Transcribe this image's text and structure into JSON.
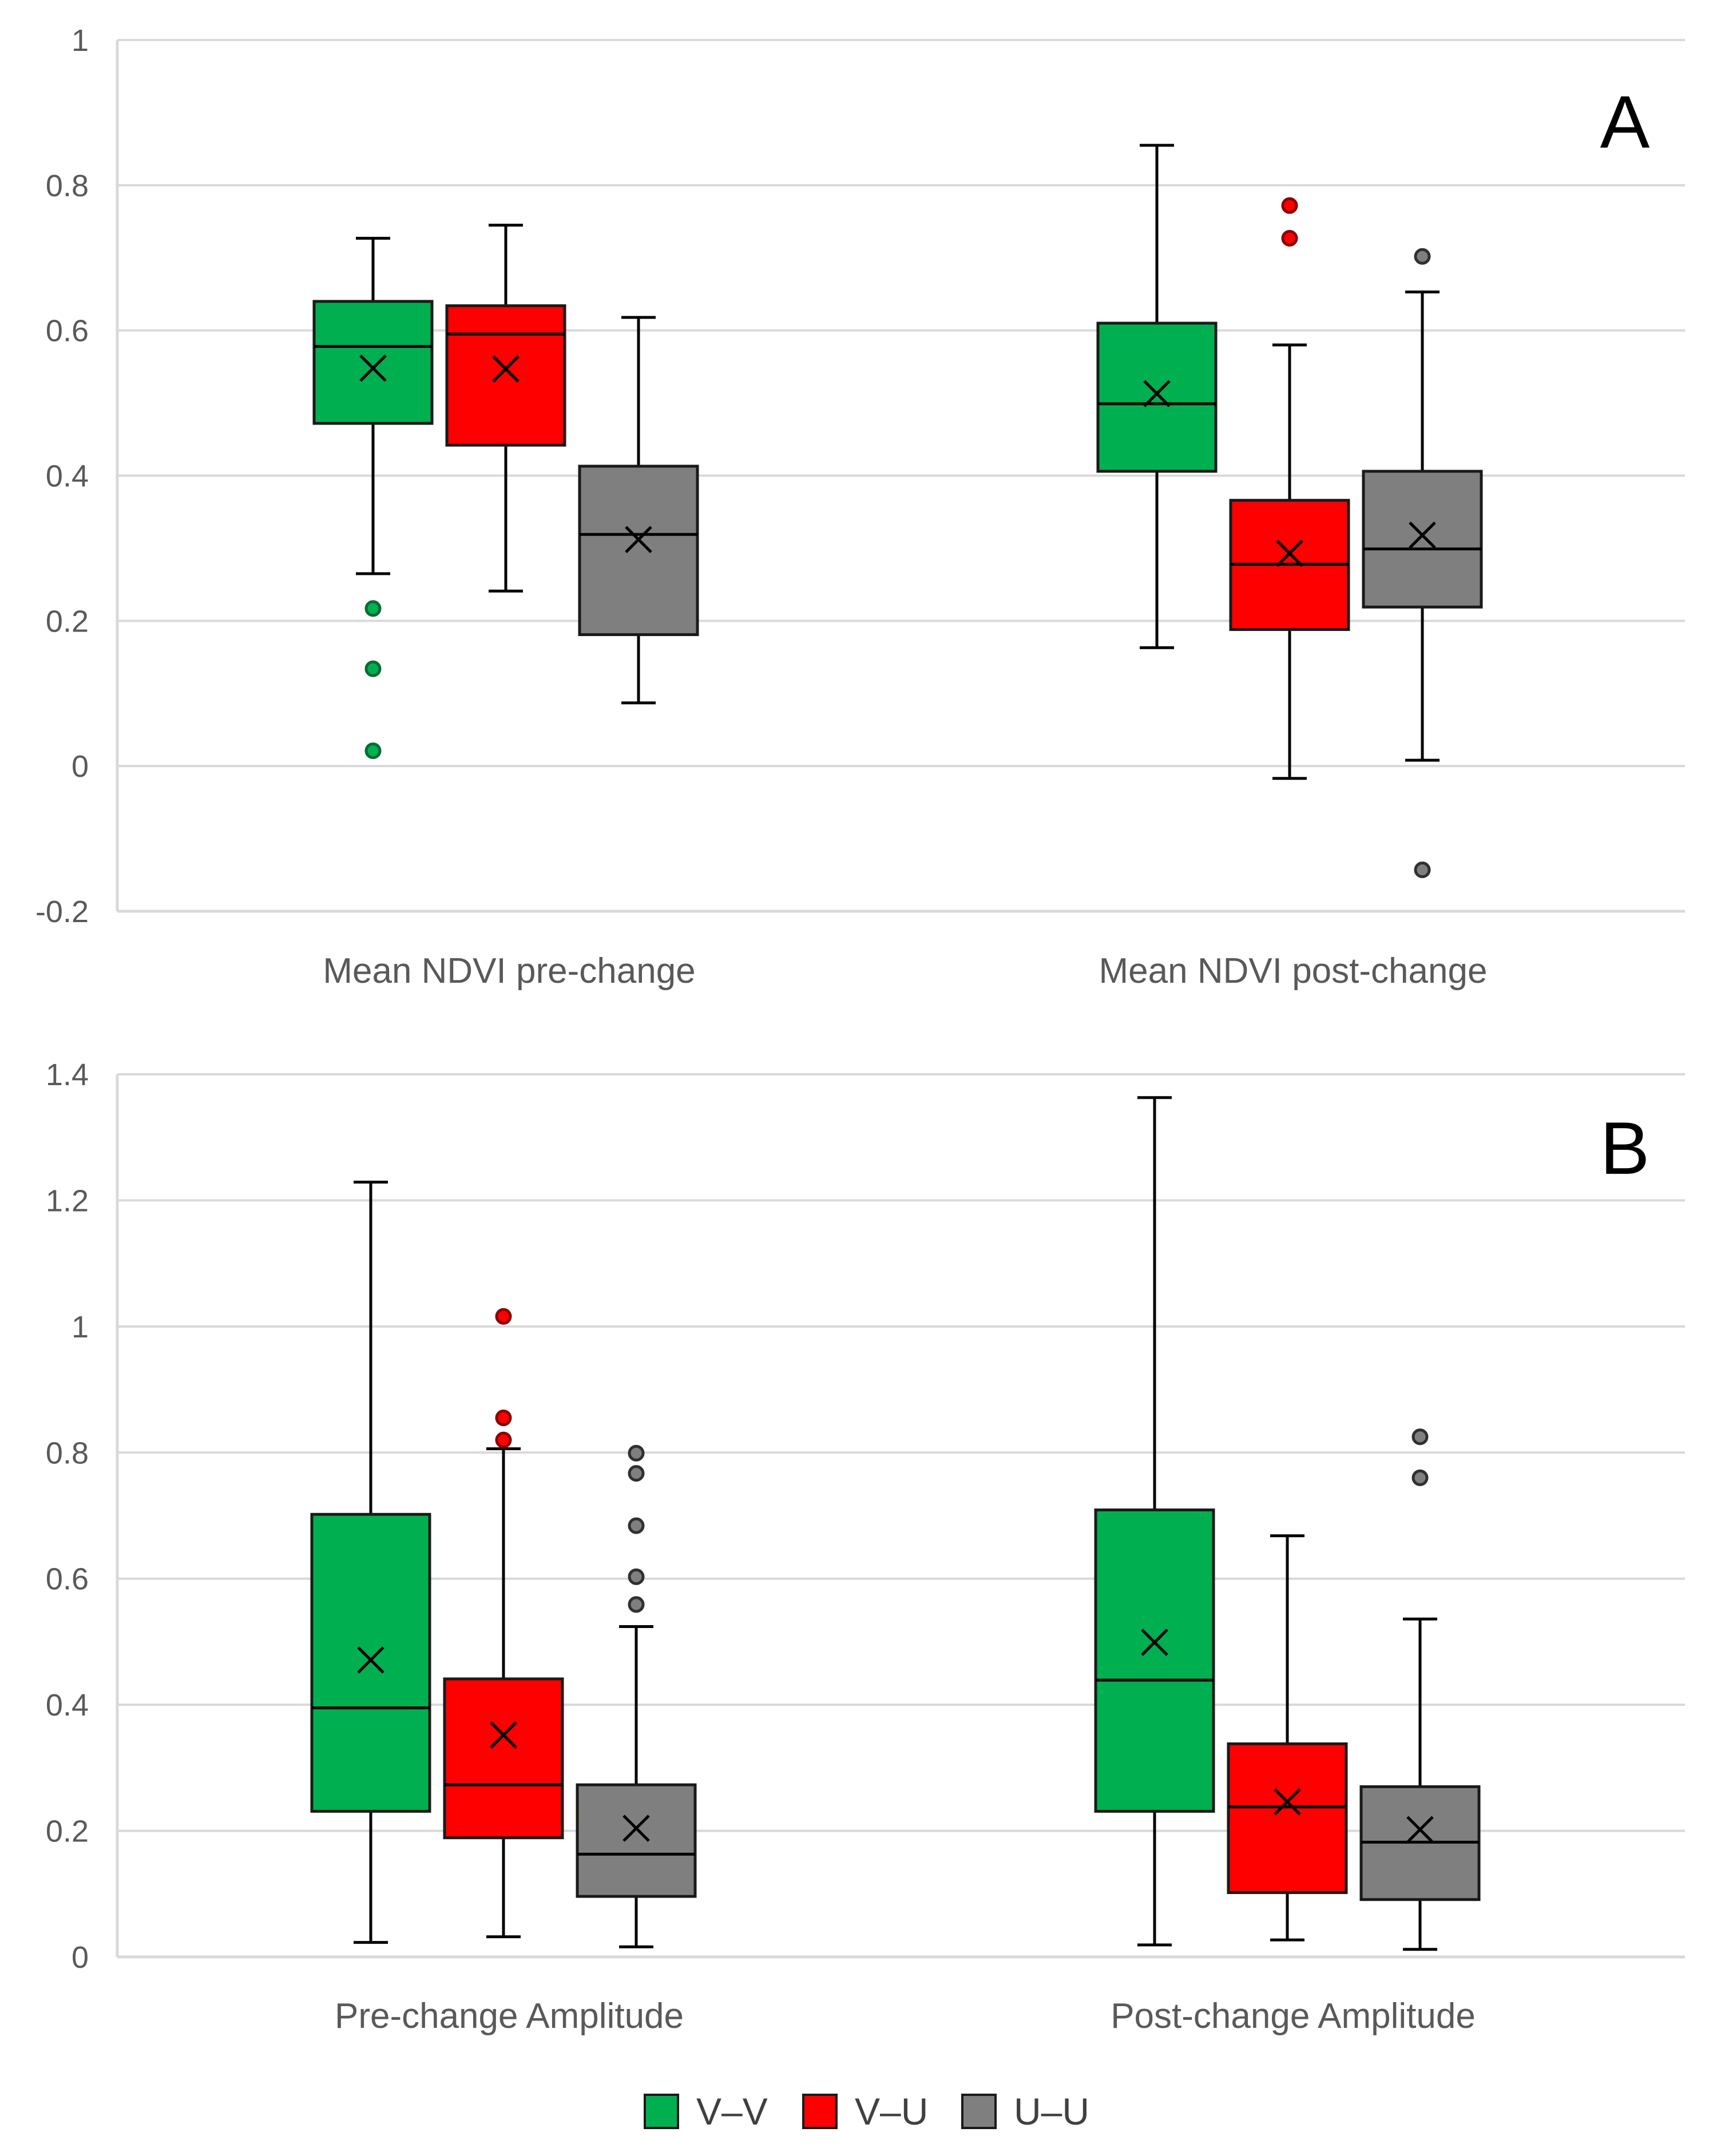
{
  "chart_data": [
    {
      "type": "box",
      "panel": "A",
      "ylim": [
        -0.2,
        1
      ],
      "yticks": [
        -0.2,
        0,
        0.2,
        0.4,
        0.6,
        0.8,
        1
      ],
      "ytick_labels": [
        "-0.2",
        "0",
        "0.2",
        "0.4",
        "0.6",
        "0.8",
        "1"
      ],
      "grid": true,
      "categories": [
        "Mean NDVI pre-change",
        "Mean NDVI post-change"
      ],
      "series": [
        {
          "name": "V–V",
          "color": "#00b050",
          "boxes": [
            {
              "min": 0.265,
              "q1": 0.472,
              "median": 0.578,
              "q3": 0.64,
              "max": 0.727,
              "mean": 0.548,
              "outliers": [
                0.217,
                0.134,
                0.021
              ]
            },
            {
              "min": 0.163,
              "q1": 0.406,
              "median": 0.499,
              "q3": 0.61,
              "max": 0.855,
              "mean": 0.513,
              "outliers": []
            }
          ]
        },
        {
          "name": "V–U",
          "color": "#ff0000",
          "boxes": [
            {
              "min": 0.241,
              "q1": 0.442,
              "median": 0.595,
              "q3": 0.634,
              "max": 0.745,
              "mean": 0.547,
              "outliers": []
            },
            {
              "min": -0.017,
              "q1": 0.188,
              "median": 0.278,
              "q3": 0.366,
              "max": 0.58,
              "mean": 0.293,
              "outliers": [
                0.772,
                0.727
              ]
            }
          ]
        },
        {
          "name": "U–U",
          "color": "#7f7f7f",
          "boxes": [
            {
              "min": 0.087,
              "q1": 0.181,
              "median": 0.319,
              "q3": 0.413,
              "max": 0.618,
              "mean": 0.312,
              "outliers": []
            },
            {
              "min": 0.008,
              "q1": 0.219,
              "median": 0.299,
              "q3": 0.406,
              "max": 0.653,
              "mean": 0.318,
              "outliers": [
                0.702,
                -0.143
              ]
            }
          ]
        }
      ]
    },
    {
      "type": "box",
      "panel": "B",
      "ylim": [
        0,
        1.4
      ],
      "yticks": [
        0,
        0.2,
        0.4,
        0.6,
        0.8,
        1,
        1.2,
        1.4
      ],
      "ytick_labels": [
        "0",
        "0.2",
        "0.4",
        "0.6",
        "0.8",
        "1",
        "1.2",
        "1.4"
      ],
      "grid": true,
      "categories": [
        "Pre-change Amplitude",
        "Post-change Amplitude"
      ],
      "series": [
        {
          "name": "V–V",
          "color": "#00b050",
          "boxes": [
            {
              "min": 0.023,
              "q1": 0.231,
              "median": 0.395,
              "q3": 0.702,
              "max": 1.229,
              "mean": 0.471,
              "outliers": []
            },
            {
              "min": 0.019,
              "q1": 0.231,
              "median": 0.439,
              "q3": 0.709,
              "max": 1.363,
              "mean": 0.499,
              "outliers": []
            }
          ]
        },
        {
          "name": "V–U",
          "color": "#ff0000",
          "boxes": [
            {
              "min": 0.032,
              "q1": 0.189,
              "median": 0.273,
              "q3": 0.441,
              "max": 0.806,
              "mean": 0.352,
              "outliers": [
                1.016,
                0.855,
                0.82
              ]
            },
            {
              "min": 0.027,
              "q1": 0.102,
              "median": 0.238,
              "q3": 0.338,
              "max": 0.668,
              "mean": 0.246,
              "outliers": []
            }
          ]
        },
        {
          "name": "U–U",
          "color": "#7f7f7f",
          "boxes": [
            {
              "min": 0.016,
              "q1": 0.096,
              "median": 0.163,
              "q3": 0.273,
              "max": 0.524,
              "mean": 0.204,
              "outliers": [
                0.799,
                0.767,
                0.684,
                0.603,
                0.559
              ]
            },
            {
              "min": 0.012,
              "q1": 0.091,
              "median": 0.182,
              "q3": 0.27,
              "max": 0.536,
              "mean": 0.202,
              "outliers": [
                0.825,
                0.76
              ]
            }
          ]
        }
      ]
    }
  ],
  "legend": {
    "position": "bottom-center",
    "items": [
      {
        "label": "V–V",
        "color": "#00b050"
      },
      {
        "label": "V–U",
        "color": "#ff0000"
      },
      {
        "label": "U–U",
        "color": "#7f7f7f"
      }
    ]
  }
}
